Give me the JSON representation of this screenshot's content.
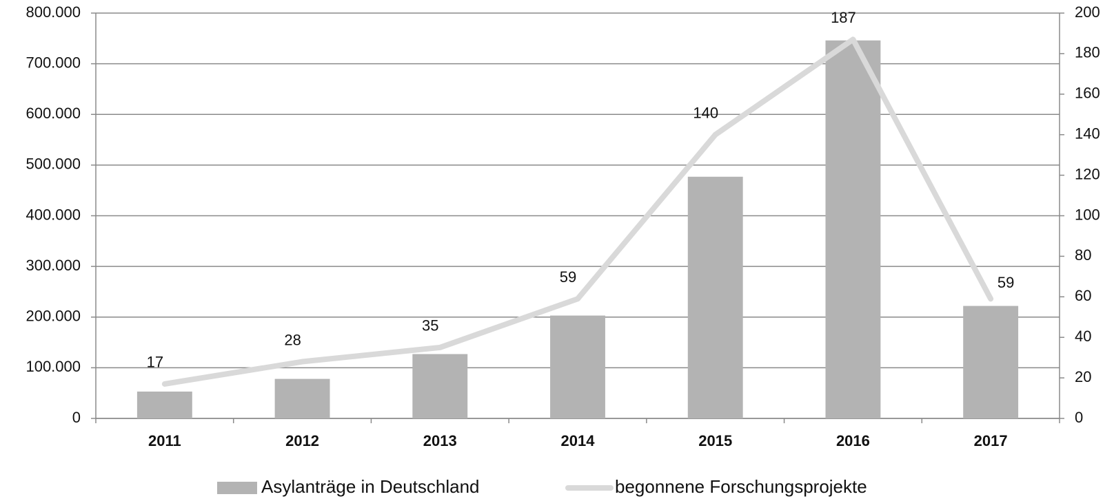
{
  "chart_data": {
    "type": "bar",
    "categories": [
      "2011",
      "2012",
      "2013",
      "2014",
      "2015",
      "2016",
      "2017"
    ],
    "series": [
      {
        "name": "Asylanträge in Deutschland",
        "color": "#b3b3b3",
        "values": [
          53000,
          78000,
          127000,
          203000,
          477000,
          746000,
          222000
        ]
      },
      {
        "name": "begonnene Forschungsprojekte",
        "color": "#d9d9d9",
        "type": "line",
        "axis": "y2",
        "values": [
          17,
          28,
          35,
          59,
          140,
          187,
          59
        ]
      }
    ],
    "ylim": [
      0,
      800000
    ],
    "yticks": [
      0,
      {
        "value": 100000,
        "label": "100.000"
      },
      {
        "value": 200000,
        "label": "200.000"
      },
      {
        "value": 300000,
        "label": "300.000"
      },
      {
        "value": 400000,
        "label": "400.000"
      },
      {
        "value": 500000,
        "label": "500.000"
      },
      {
        "value": 600000,
        "label": "600.000"
      },
      {
        "value": 700000,
        "label": "700.000"
      },
      {
        "value": 800000,
        "label": "800.000"
      }
    ],
    "y2lim": [
      0,
      200
    ],
    "y2ticks": [
      0,
      20,
      40,
      60,
      80,
      100,
      120,
      140,
      160,
      180,
      200
    ],
    "grid": true,
    "legend": "bottom"
  }
}
